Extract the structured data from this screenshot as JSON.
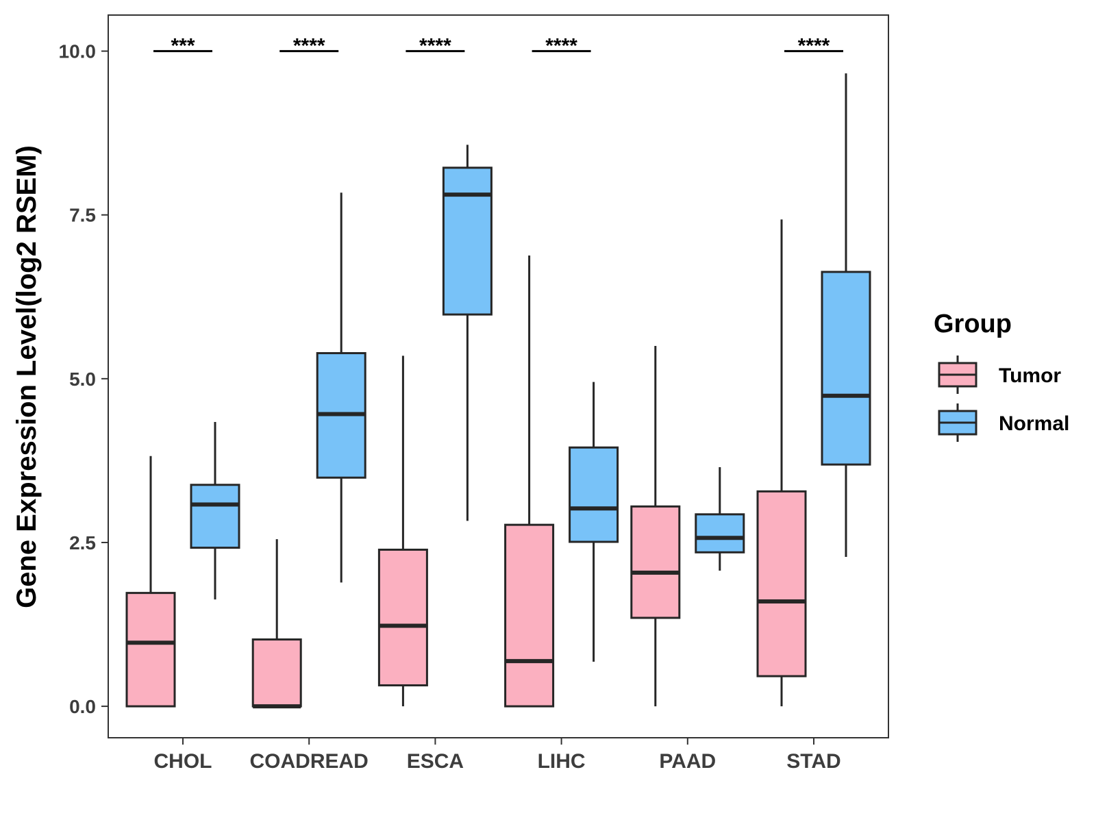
{
  "chart_data": {
    "type": "box",
    "ylabel": "Gene Expression Level(log2 RSEM)",
    "xlabel": "",
    "ylim": [
      -0.48,
      10.55
    ],
    "yticks": [
      0.0,
      2.5,
      5.0,
      7.5,
      10.0
    ],
    "ytick_labels": [
      "0.0",
      "2.5",
      "5.0",
      "7.5",
      "10.0"
    ],
    "categories": [
      "CHOL",
      "COADREAD",
      "ESCA",
      "LIHC",
      "PAAD",
      "STAD"
    ],
    "grid": false,
    "legend": {
      "title": "Group",
      "placement": "right",
      "entries": [
        "Tumor",
        "Normal"
      ]
    },
    "series": [
      {
        "name": "Tumor",
        "color": "#FBB0C0",
        "boxes": [
          {
            "min": 0.0,
            "q1": 0.0,
            "median": 0.97,
            "q3": 1.73,
            "max": 3.82
          },
          {
            "min": 0.0,
            "q1": 0.0,
            "median": 0.0,
            "q3": 1.02,
            "max": 2.55
          },
          {
            "min": 0.0,
            "q1": 0.32,
            "median": 1.23,
            "q3": 2.39,
            "max": 5.35
          },
          {
            "min": 0.0,
            "q1": 0.0,
            "median": 0.69,
            "q3": 2.77,
            "max": 6.88
          },
          {
            "min": 0.0,
            "q1": 1.35,
            "median": 2.04,
            "q3": 3.05,
            "max": 5.5
          },
          {
            "min": 0.0,
            "q1": 0.46,
            "median": 1.6,
            "q3": 3.28,
            "max": 7.43
          }
        ]
      },
      {
        "name": "Normal",
        "color": "#78C2F8",
        "boxes": [
          {
            "min": 1.63,
            "q1": 2.42,
            "median": 3.08,
            "q3": 3.38,
            "max": 4.34
          },
          {
            "min": 1.89,
            "q1": 3.49,
            "median": 4.46,
            "q3": 5.39,
            "max": 7.84
          },
          {
            "min": 2.83,
            "q1": 5.98,
            "median": 7.81,
            "q3": 8.22,
            "max": 8.57
          },
          {
            "min": 0.68,
            "q1": 2.51,
            "median": 3.02,
            "q3": 3.95,
            "max": 4.95
          },
          {
            "min": 2.07,
            "q1": 2.35,
            "median": 2.57,
            "q3": 2.93,
            "max": 3.65
          },
          {
            "min": 2.28,
            "q1": 3.69,
            "median": 4.74,
            "q3": 6.63,
            "max": 9.66
          }
        ]
      }
    ],
    "significance": [
      {
        "category": "CHOL",
        "label": "***"
      },
      {
        "category": "COADREAD",
        "label": "****"
      },
      {
        "category": "ESCA",
        "label": "****"
      },
      {
        "category": "LIHC",
        "label": "****"
      },
      {
        "category": "STAD",
        "label": "****"
      }
    ],
    "significance_y": 10.0,
    "colors": {
      "stroke": "#262626",
      "frame": "#333333"
    }
  }
}
